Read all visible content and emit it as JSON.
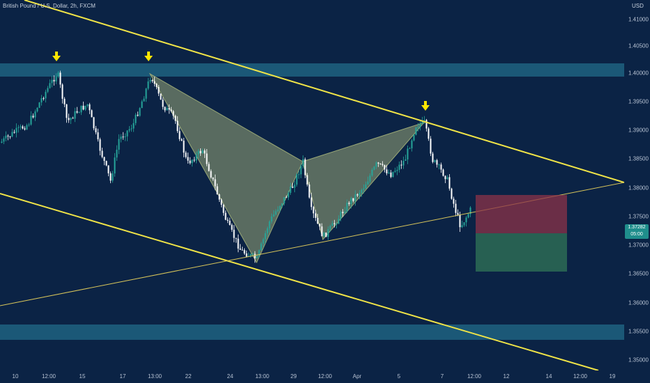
{
  "header": {
    "symbol_title": "British Pound / U.S. Dollar, 2h, FXCM",
    "currency": "USD"
  },
  "price_axis": {
    "ticks": [
      "1.41000",
      "1.40500",
      "1.40000",
      "1.39500",
      "1.39000",
      "1.38500",
      "1.38000",
      "1.37500",
      "1.37000",
      "1.36500",
      "1.36000",
      "1.35500",
      "1.35000"
    ],
    "last_price": "1.37282",
    "countdown": "05:00"
  },
  "time_axis": {
    "ticks": [
      "10",
      "12:00",
      "15",
      "17",
      "13:00",
      "22",
      "24",
      "13:00",
      "29",
      "12:00",
      "Apr",
      "5",
      "7",
      "12:00",
      "12",
      "14",
      "12:00",
      "19"
    ]
  },
  "colors": {
    "background": "#0b2345",
    "bull_candle": "#26a69a",
    "bear_candle": "#ffffff",
    "channel_line": "#f0e447",
    "zone": "#1b5877",
    "pattern_fill": "#9aa876",
    "stop_box": "#8c3348",
    "target_box": "#2d6b55",
    "arrow": "#ffe600"
  },
  "annotations": {
    "arrows": [
      "down-arrow-icon",
      "down-arrow-icon",
      "down-arrow-icon"
    ],
    "pattern": "harmonic-pattern",
    "zones": [
      "resistance-zone",
      "support-zone"
    ],
    "position_tool": "short-position"
  }
}
